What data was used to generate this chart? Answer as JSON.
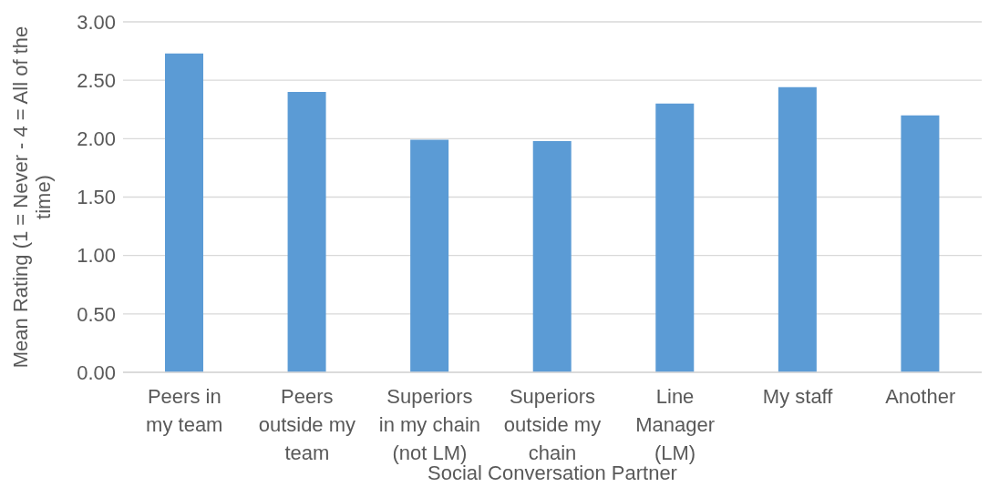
{
  "chart_data": {
    "type": "bar",
    "xlabel": "Social Conversation Partner",
    "ylabel": "Mean Rating (1 = Never - 4 = All of the time)",
    "categories": [
      "Peers in my team",
      "Peers outside my team",
      "Superiors in my chain (not LM)",
      "Superiors outside my chain",
      "Line Manager (LM)",
      "My staff",
      "Another"
    ],
    "values": [
      2.73,
      2.4,
      1.99,
      1.98,
      2.3,
      2.44,
      2.2
    ],
    "color": "#5b9bd5",
    "ylim": [
      0,
      3
    ],
    "yticks": [
      {
        "value": 0,
        "label": "0.00"
      },
      {
        "value": 0.5,
        "label": "0.50"
      },
      {
        "value": 1,
        "label": "1.00"
      },
      {
        "value": 1.5,
        "label": "1.50"
      },
      {
        "value": 2,
        "label": "2.00"
      },
      {
        "value": 2.5,
        "label": "2.50"
      },
      {
        "value": 3,
        "label": "3.00"
      }
    ],
    "grid": "y",
    "legend": false
  }
}
